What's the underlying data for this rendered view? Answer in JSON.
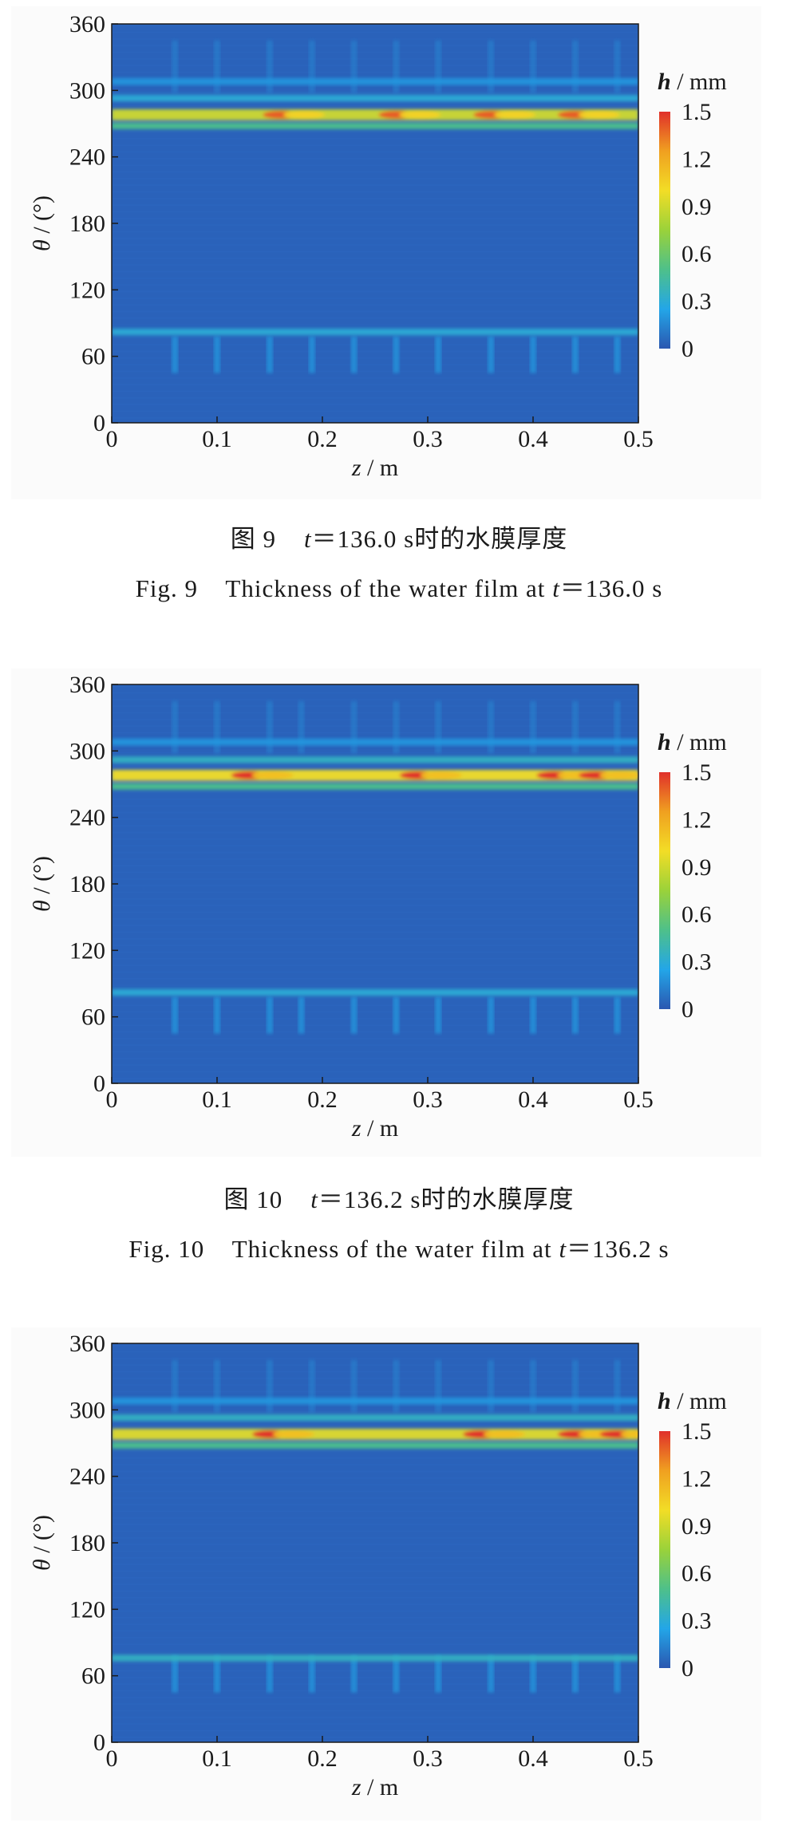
{
  "figures": [
    {
      "zh_prefix": "图 9",
      "zh_t": "t",
      "zh_rest": "＝136.0 s时的水膜厚度",
      "en_prefix": "Fig. 9",
      "en_text": "Thickness of the water film at ",
      "en_t": "t",
      "en_rest": "＝136.0 s"
    },
    {
      "zh_prefix": "图 10",
      "zh_t": "t",
      "zh_rest": "＝136.2 s时的水膜厚度",
      "en_prefix": "Fig. 10",
      "en_text": "Thickness of the water film at ",
      "en_t": "t",
      "en_rest": "＝136.2 s"
    },
    {
      "zh_prefix": "",
      "zh_t": "",
      "zh_rest": "",
      "en_prefix": "",
      "en_text": "",
      "en_t": "",
      "en_rest": ""
    }
  ],
  "colors": {
    "background_blue": "#2a62ba",
    "colormap": [
      "#2b57b0",
      "#23a6e8",
      "#4ec08a",
      "#9ad23a",
      "#f2dd26",
      "#f0a020",
      "#e0302a"
    ]
  },
  "chart_data": [
    {
      "type": "heatmap",
      "title": "",
      "xlabel_var": "z",
      "xlabel_unit": " / m",
      "ylabel_var": "θ",
      "ylabel_unit": " / (°)",
      "xlim": [
        0,
        0.5
      ],
      "ylim": [
        0,
        360
      ],
      "xticks": [
        "0",
        "0.1",
        "0.2",
        "0.3",
        "0.4",
        "0.5"
      ],
      "yticks": [
        "0",
        "60",
        "120",
        "180",
        "240",
        "300",
        "360"
      ],
      "colorbar_label_var": "h",
      "colorbar_label_unit": " / mm",
      "colorbar_range": [
        0,
        1.5
      ],
      "colorbar_ticks": [
        "0",
        "0.3",
        "0.6",
        "0.9",
        "1.2",
        "1.5"
      ],
      "bands": [
        {
          "theta_center": 278,
          "h_mean": 0.9,
          "h_max": 1.4,
          "peaks_z": [
            0.16,
            0.27,
            0.36,
            0.44
          ]
        },
        {
          "theta_center": 268,
          "h_mean": 0.5
        },
        {
          "theta_center": 293,
          "h_mean": 0.3
        },
        {
          "theta_center": 82,
          "h_mean": 0.3
        },
        {
          "theta_center": 308,
          "h_mean": 0.2
        }
      ],
      "streak_z": [
        0.06,
        0.1,
        0.15,
        0.19,
        0.23,
        0.27,
        0.31,
        0.36,
        0.4,
        0.44,
        0.48
      ]
    },
    {
      "type": "heatmap",
      "title": "",
      "xlabel_var": "z",
      "xlabel_unit": " / m",
      "ylabel_var": "θ",
      "ylabel_unit": " / (°)",
      "xlim": [
        0,
        0.5
      ],
      "ylim": [
        0,
        360
      ],
      "xticks": [
        "0",
        "0.1",
        "0.2",
        "0.3",
        "0.4",
        "0.5"
      ],
      "yticks": [
        "0",
        "60",
        "120",
        "180",
        "240",
        "300",
        "360"
      ],
      "colorbar_label_var": "h",
      "colorbar_label_unit": " / mm",
      "colorbar_range": [
        0,
        1.5
      ],
      "colorbar_ticks": [
        "0",
        "0.3",
        "0.6",
        "0.9",
        "1.2",
        "1.5"
      ],
      "bands": [
        {
          "theta_center": 278,
          "h_mean": 1.0,
          "h_max": 1.5,
          "peaks_z": [
            0.13,
            0.29,
            0.42,
            0.46
          ]
        },
        {
          "theta_center": 268,
          "h_mean": 0.5
        },
        {
          "theta_center": 292,
          "h_mean": 0.35
        },
        {
          "theta_center": 82,
          "h_mean": 0.3
        },
        {
          "theta_center": 308,
          "h_mean": 0.2
        }
      ],
      "streak_z": [
        0.06,
        0.1,
        0.15,
        0.18,
        0.23,
        0.27,
        0.31,
        0.36,
        0.4,
        0.44,
        0.48
      ]
    },
    {
      "type": "heatmap",
      "title": "",
      "xlabel_var": "z",
      "xlabel_unit": " / m",
      "ylabel_var": "θ",
      "ylabel_unit": " / (°)",
      "xlim": [
        0,
        0.5
      ],
      "ylim": [
        0,
        360
      ],
      "xticks": [
        "0",
        "0.1",
        "0.2",
        "0.3",
        "0.4",
        "0.5"
      ],
      "yticks": [
        "0",
        "60",
        "120",
        "180",
        "240",
        "300",
        "360"
      ],
      "colorbar_label_var": "h",
      "colorbar_label_unit": " / mm",
      "colorbar_range": [
        0,
        1.5
      ],
      "colorbar_ticks": [
        "0",
        "0.3",
        "0.6",
        "0.9",
        "1.2",
        "1.5"
      ],
      "bands": [
        {
          "theta_center": 278,
          "h_mean": 0.95,
          "h_max": 1.5,
          "peaks_z": [
            0.15,
            0.35,
            0.44,
            0.48
          ]
        },
        {
          "theta_center": 268,
          "h_mean": 0.5
        },
        {
          "theta_center": 293,
          "h_mean": 0.35
        },
        {
          "theta_center": 76,
          "h_mean": 0.35
        },
        {
          "theta_center": 308,
          "h_mean": 0.2
        }
      ],
      "streak_z": [
        0.06,
        0.1,
        0.15,
        0.19,
        0.23,
        0.27,
        0.31,
        0.36,
        0.4,
        0.44,
        0.48
      ]
    }
  ]
}
